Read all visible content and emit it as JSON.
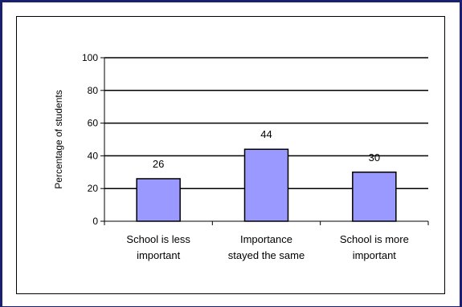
{
  "colors": {
    "frame_border": "#1a1f6e",
    "bar_fill": "#9999ff",
    "bar_stroke": "#000000",
    "gridline": "#000000"
  },
  "chart_data": {
    "type": "bar",
    "categories": [
      [
        "School is less",
        "important"
      ],
      [
        "Importance",
        "stayed the same"
      ],
      [
        "School is more",
        "important"
      ]
    ],
    "values": [
      26,
      44,
      30
    ],
    "data_labels": [
      "26",
      "44",
      "30"
    ],
    "title": "",
    "xlabel": "",
    "ylabel": "Percentage of students",
    "ylim": [
      0,
      100
    ],
    "yticks": [
      0,
      20,
      40,
      60,
      80,
      100
    ],
    "grid": true,
    "legend": "none"
  }
}
